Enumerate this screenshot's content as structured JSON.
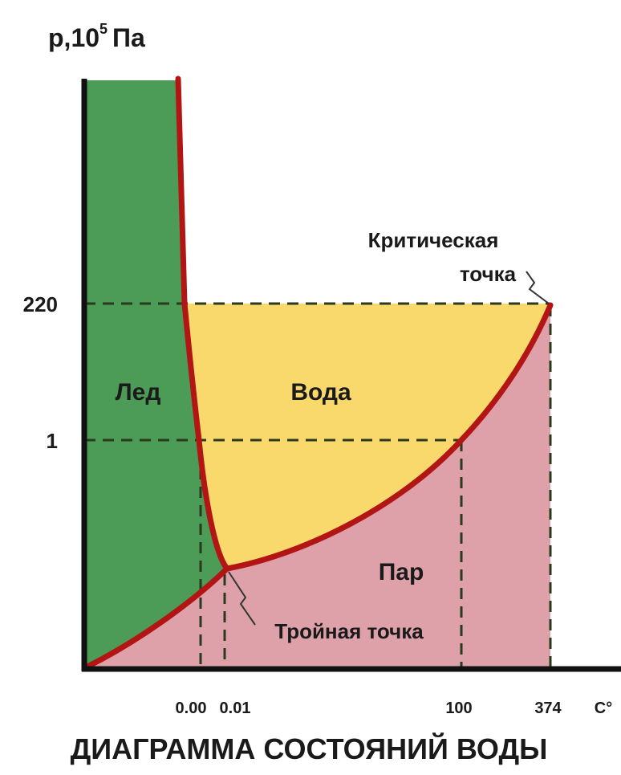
{
  "axis": {
    "y_label": "p,10",
    "y_label_sup": "5",
    "y_label_unit": "Па",
    "y_ticks": [
      "220",
      "1"
    ],
    "x_ticks": [
      "0.00",
      "0.01",
      "100",
      "374"
    ],
    "x_unit": "C°"
  },
  "regions": {
    "ice": "Лед",
    "water": "Вода",
    "vapor": "Пар"
  },
  "annotations": {
    "critical_point": [
      "Критическая",
      "точка"
    ],
    "triple_point": "Тройная точка"
  },
  "title": "ДИАГРАММА СОСТОЯНИЙ ВОДЫ"
}
